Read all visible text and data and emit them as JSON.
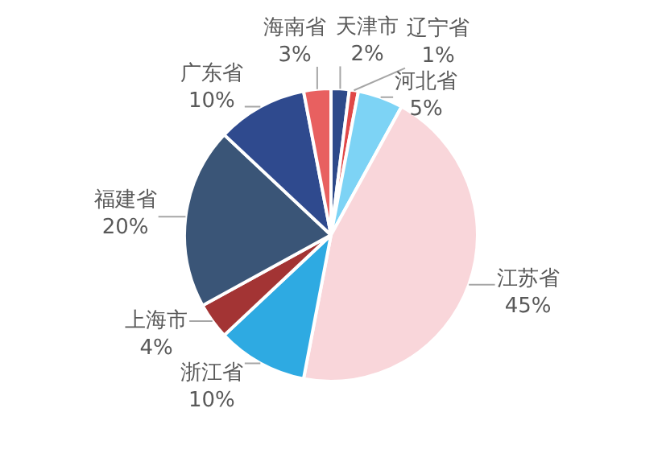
{
  "chart_data": {
    "type": "pie",
    "categories": [
      "天津市",
      "辽宁省",
      "河北省",
      "江苏省",
      "浙江省",
      "上海市",
      "福建省",
      "广东省",
      "海南省"
    ],
    "values": [
      2,
      1,
      5,
      45,
      10,
      4,
      20,
      10,
      3
    ],
    "value_labels": [
      "2%",
      "1%",
      "5%",
      "45%",
      "10%",
      "4%",
      "20%",
      "10%",
      "3%"
    ],
    "colors": [
      "#2e4a8a",
      "#e04848",
      "#7dd3f5",
      "#f9d6da",
      "#2eaae2",
      "#a33434",
      "#3a5577",
      "#2f4a8e",
      "#e86060"
    ],
    "legend": false
  }
}
